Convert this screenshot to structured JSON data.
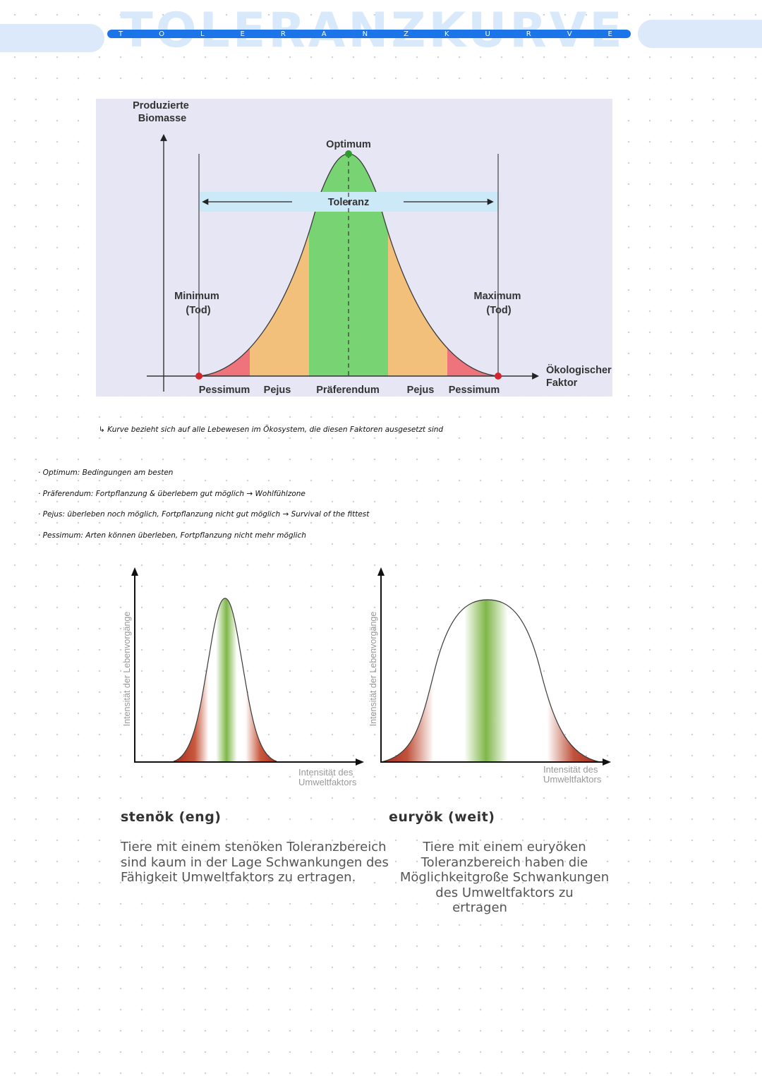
{
  "header": {
    "title": "TOLERANZKURVE",
    "letters": [
      "T",
      "O",
      "L",
      "E",
      "R",
      "A",
      "N",
      "Z",
      "K",
      "U",
      "R",
      "V",
      "E"
    ]
  },
  "main_chart": {
    "y_axis_label_line1": "Produzierte",
    "y_axis_label_line2": "Biomasse",
    "x_axis_label_line1": "Ökologischer",
    "x_axis_label_line2": "Faktor",
    "optimum_label": "Optimum",
    "tolerance_label": "Toleranz",
    "minimum_label_line1": "Minimum",
    "minimum_label_line2": "(Tod)",
    "maximum_label_line1": "Maximum",
    "maximum_label_line2": "(Tod)",
    "zones": [
      "Pessimum",
      "Pejus",
      "Präferendum",
      "Pejus",
      "Pessimum"
    ],
    "colors": {
      "background": "#e6e6f5",
      "pessimum": "#ef737a",
      "pejus": "#f2c07a",
      "praeferendum": "#78d373",
      "optimum": "#6bc465",
      "tolerance_band": "#cce9f7"
    }
  },
  "notes": {
    "remark": "↳ Kurve bezieht sich auf alle Lebewesen im Ökosystem, die diesen Faktoren ausgesetzt sind",
    "items": [
      "· Optimum: Bedingungen am besten",
      "· Präferendum: Fortpflanzung & überlebem gut möglich → Wohlfühlzone",
      "· Pejus: überleben noch möglich, Fortpflanzung nicht gut möglich → Survival of the fittest",
      "· Pessimum: Arten können überleben, Fortpflanzung nicht mehr möglich"
    ]
  },
  "stenoek": {
    "y_label": "Intensität der Lebenvorgänge",
    "x_label_line1": "Intensität des",
    "x_label_line2": "Umweltfaktors",
    "title": "stenök (eng)",
    "desc_lines": [
      "Tiere mit einem stenöken Toleranzbereich",
      "sind kaum in der Lage Schwankungen des",
      "Fähigkeit Umweltfaktors zu ertragen."
    ]
  },
  "euryoek": {
    "y_label": "Intensität der Lebenvorgänge",
    "x_label_line1": "Intensität des",
    "x_label_line2": "Umweltfaktors",
    "title": "euryök (weit)",
    "desc_lines": [
      "Tiere mit einem euryöken",
      "Toleranzbereich haben die",
      "Möglichkeitgroße Schwankungen",
      "des Umweltfaktors zu",
      "ertragen"
    ]
  }
}
